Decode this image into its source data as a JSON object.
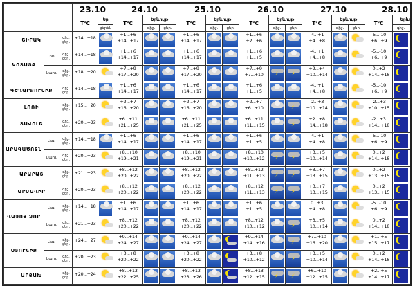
{
  "header": {
    "dates": [
      "23.10",
      "24.10",
      "25.10",
      "26.10",
      "27.10",
      "28.10"
    ],
    "temp_label": "T°C",
    "cond_label": "Երևույթ",
    "cond_short": "Եր",
    "day_label": "ցերեկ",
    "night_label": "գիշ.",
    "day_short": "ցեր.",
    "icon_legend": {
      "cloud": "cloud-icon",
      "storm": "storm-icon",
      "sun": "sun-icon",
      "moon": "moon-icon",
      "mooncloud": "moon-cloud-icon"
    }
  },
  "rows": [
    {
      "region": "ՇԻՐԱԿ",
      "zone": "",
      "tod": "գիշ.\nցեր.",
      "d23": {
        "t": "+14...+18",
        "i": "cloud"
      },
      "d24": {
        "t": "+1...+6\n+14...+17",
        "i": [
          "cloud",
          "cloud"
        ]
      },
      "d25": {
        "t": "+1...+6\n+14...+17",
        "i": [
          "cloud",
          "cloud"
        ]
      },
      "d26": {
        "t": "+1...+6\n+2...+6",
        "i": [
          "cloud",
          "cloud"
        ]
      },
      "d27": {
        "t": "-4...+1\n+4...+8",
        "i": [
          "cloud",
          "sun"
        ]
      },
      "d28": {
        "t": "-5...-10\n+6...+9",
        "i": [
          "moon",
          "sun"
        ]
      }
    },
    {
      "region": "ԿՈՏԱՅՔ",
      "zone": "Լեռ.",
      "tod": "գիշ.\nցեր.",
      "d23": {
        "t": "+14...+18",
        "i": "cloud"
      },
      "d24": {
        "t": "+1...+6\n+14...+17",
        "i": [
          "cloud",
          "cloud"
        ]
      },
      "d25": {
        "t": "+1...+6\n+14...+17",
        "i": [
          "cloud",
          "cloud"
        ]
      },
      "d26": {
        "t": "+1...+6\n+1...+5",
        "i": [
          "cloud",
          "cloud"
        ]
      },
      "d27": {
        "t": "-4...+1\n+4...+8",
        "i": [
          "cloud",
          "sun"
        ]
      },
      "d28": {
        "t": "-5...-10\n+6...+9",
        "i": [
          "moon",
          "sun"
        ]
      }
    },
    {
      "region": "",
      "zone": "Նախ.",
      "tod": "գիշ.\nցեր.",
      "d23": {
        "t": "+18...+20",
        "i": "sun"
      },
      "d24": {
        "t": "+7...+9\n+17...+20",
        "i": [
          "cloud",
          "cloud"
        ]
      },
      "d25": {
        "t": "+7...+9\n+17...+20",
        "i": [
          "cloud",
          "cloud"
        ]
      },
      "d26": {
        "t": "+7...+9\n+7...+10",
        "i": [
          "storm",
          "storm"
        ]
      },
      "d27": {
        "t": "+2...+4\n+10...+14",
        "i": [
          "cloud",
          "sun"
        ]
      },
      "d28": {
        "t": "0...+2\n+14...+18",
        "i": [
          "moon",
          "sun"
        ]
      }
    },
    {
      "region": "ԳԵՂԱՐՔՈՒՆԻՔ",
      "zone": "",
      "tod": "գիշ.\nցեր.",
      "d23": {
        "t": "+14...+18",
        "i": "cloud"
      },
      "d24": {
        "t": "+1...+6\n+14...+17",
        "i": [
          "cloud",
          "cloud"
        ]
      },
      "d25": {
        "t": "+1...+6\n+14...+17",
        "i": [
          "cloud",
          "cloud"
        ]
      },
      "d26": {
        "t": "+1...+6\n+1...+5",
        "i": [
          "cloud",
          "cloud"
        ]
      },
      "d27": {
        "t": "-4...+1\n+4...+8",
        "i": [
          "cloud",
          "sun"
        ]
      },
      "d28": {
        "t": "-5...-10\n+6...+9",
        "i": [
          "moon",
          "sun"
        ]
      }
    },
    {
      "region": "ԼՈՌԻ",
      "zone": "",
      "tod": "գիշ.\nցեր.",
      "d23": {
        "t": "+15...+20",
        "i": "sun"
      },
      "d24": {
        "t": "+2...+7\n+16...+20",
        "i": [
          "cloud",
          "cloud"
        ]
      },
      "d25": {
        "t": "+2...+7\n+16...+20",
        "i": [
          "cloud",
          "cloud"
        ]
      },
      "d26": {
        "t": "+2...+7\n+6...+10",
        "i": [
          "cloud",
          "storm"
        ]
      },
      "d27": {
        "t": "-2...+3\n+10...+14",
        "i": [
          "cloud",
          "sun"
        ]
      },
      "d28": {
        "t": "-2...+3\n+10...+15",
        "i": [
          "moon",
          "sun"
        ]
      }
    },
    {
      "region": "ՏԱՎՈՒՇ",
      "zone": "",
      "tod": "գիշ.\nցեր.",
      "d23": {
        "t": "+20...+23",
        "i": "sun"
      },
      "d24": {
        "t": "+6...+11\n+21...+25",
        "i": [
          "cloud",
          "cloud"
        ]
      },
      "d25": {
        "t": "+6...+11\n+21...+25",
        "i": [
          "cloud",
          "cloud"
        ]
      },
      "d26": {
        "t": "+6...+11\n+11...+15",
        "i": [
          "cloud",
          "storm"
        ]
      },
      "d27": {
        "t": "+2...+8\n+14...+18",
        "i": [
          "cloud",
          "sun"
        ]
      },
      "d28": {
        "t": "-2...+3\n+14...+18",
        "i": [
          "moon",
          "sun"
        ]
      }
    },
    {
      "region": "ԱՐԱԳԱԾՈՏՆ",
      "zone": "Լեռ.",
      "tod": "գիշ.\nցեր.",
      "d23": {
        "t": "+14...+18",
        "i": "cloud"
      },
      "d24": {
        "t": "+1...+6\n+14...+17",
        "i": [
          "cloud",
          "cloud"
        ]
      },
      "d25": {
        "t": "+1...+6\n+14...+17",
        "i": [
          "cloud",
          "cloud"
        ]
      },
      "d26": {
        "t": "+1...+6\n+1...+5",
        "i": [
          "cloud",
          "cloud"
        ]
      },
      "d27": {
        "t": "-4...+1\n+4...+8",
        "i": [
          "cloud",
          "sun"
        ]
      },
      "d28": {
        "t": "-5...-10\n+6...+9",
        "i": [
          "moon",
          "sun"
        ]
      }
    },
    {
      "region": "",
      "zone": "Նախ.",
      "tod": "գիշ.\nցեր.",
      "d23": {
        "t": "+20...+23",
        "i": "sun"
      },
      "d24": {
        "t": "+8...+10\n+19...+21",
        "i": [
          "cloud",
          "cloud"
        ]
      },
      "d25": {
        "t": "+8...+10\n+19...+21",
        "i": [
          "cloud",
          "cloud"
        ]
      },
      "d26": {
        "t": "+8...+10\n+10...+12",
        "i": [
          "storm",
          "storm"
        ]
      },
      "d27": {
        "t": "+3...+5\n+10...+14",
        "i": [
          "cloud",
          "sun"
        ]
      },
      "d28": {
        "t": "0...+2\n+14...+18",
        "i": [
          "moon",
          "sun"
        ]
      }
    },
    {
      "region": "ԱՐԱՐԱՏ",
      "zone": "",
      "tod": "գիշ.\nցեր.",
      "d23": {
        "t": "+21...+23",
        "i": "sun"
      },
      "d24": {
        "t": "+8...+12\n+20...+22",
        "i": [
          "cloud",
          "cloud"
        ]
      },
      "d25": {
        "t": "+8...+12\n+20...+22",
        "i": [
          "cloud",
          "cloud"
        ]
      },
      "d26": {
        "t": "+8...+12\n+11...+13",
        "i": [
          "storm",
          "storm"
        ]
      },
      "d27": {
        "t": "+3...+7\n+13...+15",
        "i": [
          "cloud",
          "sun"
        ]
      },
      "d28": {
        "t": "0...+2\n+13...+15",
        "i": [
          "moon",
          "sun"
        ]
      }
    },
    {
      "region": "ԱՐՄԱՎԻՐ",
      "zone": "",
      "tod": "գիշ.\nցեր.",
      "d23": {
        "t": "+20...+23",
        "i": "sun"
      },
      "d24": {
        "t": "+8...+12\n+20...+22",
        "i": [
          "cloud",
          "cloud"
        ]
      },
      "d25": {
        "t": "+8...+12\n+20...+22",
        "i": [
          "cloud",
          "cloud"
        ]
      },
      "d26": {
        "t": "+8...+12\n+11...+13",
        "i": [
          "storm",
          "storm"
        ]
      },
      "d27": {
        "t": "+3...+7\n+13...+15",
        "i": [
          "cloud",
          "sun"
        ]
      },
      "d28": {
        "t": "0...+2\n+13...+15",
        "i": [
          "moon",
          "sun"
        ]
      }
    },
    {
      "region": "ՎԱՅՈՑ ՁՈՐ",
      "zone": "Լեռ.",
      "tod": "գիշ.\nցեր.",
      "d23": {
        "t": "+14...+18",
        "i": "cloud"
      },
      "d24": {
        "t": "+1...+6\n+14...+17",
        "i": [
          "cloud",
          "cloud"
        ]
      },
      "d25": {
        "t": "+1...+6\n+14...+17",
        "i": [
          "cloud",
          "cloud"
        ]
      },
      "d26": {
        "t": "+1...+6\n+1...+5",
        "i": [
          "cloud",
          "cloud"
        ]
      },
      "d27": {
        "t": "0...+3\n+4...+8",
        "i": [
          "cloud",
          "sun"
        ]
      },
      "d28": {
        "t": "-5...-10\n+6...+9",
        "i": [
          "moon",
          "sun"
        ]
      }
    },
    {
      "region": "",
      "zone": "Նախ.",
      "tod": "գիշ.\nցեր.",
      "d23": {
        "t": "+21...+23",
        "i": "sun"
      },
      "d24": {
        "t": "+8...+12\n+20...+22",
        "i": [
          "cloud",
          "cloud"
        ]
      },
      "d25": {
        "t": "+8...+12\n+20...+22",
        "i": [
          "cloud",
          "cloud"
        ]
      },
      "d26": {
        "t": "+8...+12\n+10...+12",
        "i": [
          "cloud",
          "storm"
        ]
      },
      "d27": {
        "t": "+3...+5\n+10...+14",
        "i": [
          "cloud",
          "sun"
        ]
      },
      "d28": {
        "t": "0...+2\n+14...+18",
        "i": [
          "moon",
          "sun"
        ]
      }
    },
    {
      "region": "ՍՅՈՒՆԻՔ",
      "zone": "Լեռ.",
      "tod": "գիշ.\nցեր.",
      "d23": {
        "t": "+24...+27",
        "i": "sun"
      },
      "d24": {
        "t": "+9...+14\n+24...+27",
        "i": [
          "cloud",
          "cloud"
        ]
      },
      "d25": {
        "t": "+9...+14\n+24...+27",
        "i": [
          "cloud",
          "mooncloud"
        ]
      },
      "d26": {
        "t": "+9...+14\n+14...+16",
        "i": [
          "cloud",
          "storm"
        ]
      },
      "d27": {
        "t": "+7...+10\n+16...+20",
        "i": [
          "cloud",
          "sun"
        ]
      },
      "d28": {
        "t": "+1...+5\n+15...+17",
        "i": [
          "moon",
          "sun"
        ]
      }
    },
    {
      "region": "",
      "zone": "Նախ.",
      "tod": "գիշ.\nցեր.",
      "d23": {
        "t": "+20...+23",
        "i": "sun"
      },
      "d24": {
        "t": "+3...+8\n+20...+22",
        "i": [
          "cloud",
          "cloud"
        ]
      },
      "d25": {
        "t": "+3...+8\n+20...+22",
        "i": [
          "cloud",
          "mooncloud"
        ]
      },
      "d26": {
        "t": "+3...+8\n+10...+12",
        "i": [
          "cloud",
          "storm"
        ]
      },
      "d27": {
        "t": "+3...+5\n+10...+14",
        "i": [
          "cloud",
          "sun"
        ]
      },
      "d28": {
        "t": "0...+2\n+14...+18",
        "i": [
          "moon",
          "sun"
        ]
      }
    },
    {
      "region": "ԱՐՑԱԽ",
      "zone": "",
      "tod": "գիշ.\nցեր.",
      "d23": {
        "t": "+20...+24",
        "i": "sun"
      },
      "d24": {
        "t": "+8...+13\n+22...+25",
        "i": [
          "cloud",
          "cloud"
        ]
      },
      "d25": {
        "t": "+8...+13\n+23...+26",
        "i": [
          "cloud",
          "mooncloud"
        ]
      },
      "d26": {
        "t": "+8...+13\n+12...+15",
        "i": [
          "storm",
          "storm"
        ]
      },
      "d27": {
        "t": "+6...+10\n+12...+15",
        "i": [
          "cloud",
          "sun"
        ]
      },
      "d28": {
        "t": "+2...+5\n+14...+17",
        "i": [
          "moon",
          "sun"
        ]
      }
    }
  ]
}
